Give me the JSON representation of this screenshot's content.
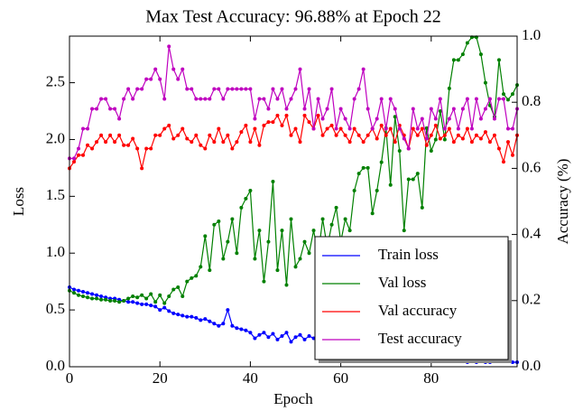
{
  "chart_data": {
    "type": "line",
    "title": "Max Test Accuracy: 96.88% at Epoch 22",
    "xlabel": "Epoch",
    "ylabel": "Loss",
    "y2label": "Accuracy (%)",
    "x": [
      0,
      1,
      2,
      3,
      4,
      5,
      6,
      7,
      8,
      9,
      10,
      11,
      12,
      13,
      14,
      15,
      16,
      17,
      18,
      19,
      20,
      21,
      22,
      23,
      24,
      25,
      26,
      27,
      28,
      29,
      30,
      31,
      32,
      33,
      34,
      35,
      36,
      37,
      38,
      39,
      40,
      41,
      42,
      43,
      44,
      45,
      46,
      47,
      48,
      49,
      50,
      51,
      52,
      53,
      54,
      55,
      56,
      57,
      58,
      59,
      60,
      61,
      62,
      63,
      64,
      65,
      66,
      67,
      68,
      69,
      70,
      71,
      72,
      73,
      74,
      75,
      76,
      77,
      78,
      79,
      80,
      81,
      82,
      83,
      84,
      85,
      86,
      87,
      88,
      89,
      90,
      91,
      92,
      93,
      94,
      95,
      96,
      97,
      98,
      99
    ],
    "xlim": [
      0,
      99
    ],
    "xticks": [
      0,
      20,
      40,
      60,
      80
    ],
    "ylim": [
      0,
      2.91
    ],
    "yticks": [
      {
        "value": 0,
        "label": "0.0"
      },
      0.5,
      {
        "value": 1,
        "label": "1.0"
      },
      1.5,
      {
        "value": 2,
        "label": "2.0"
      },
      2.5
    ],
    "y2lim": [
      0,
      1
    ],
    "y2ticks": [
      {
        "value": 0,
        "label": "0.0"
      },
      0.2,
      0.4,
      0.6,
      0.8,
      {
        "value": 1,
        "label": "1.0"
      }
    ],
    "legend": "lower right",
    "series": [
      {
        "name": "Train loss",
        "color": "#0000ff",
        "values": [
          0.7,
          0.68,
          0.67,
          0.66,
          0.65,
          0.64,
          0.63,
          0.62,
          0.61,
          0.6,
          0.6,
          0.59,
          0.58,
          0.57,
          0.57,
          0.56,
          0.55,
          0.55,
          0.54,
          0.53,
          0.5,
          0.52,
          0.49,
          0.47,
          0.46,
          0.45,
          0.44,
          0.44,
          0.43,
          0.41,
          0.42,
          0.4,
          0.38,
          0.36,
          0.38,
          0.5,
          0.36,
          0.34,
          0.33,
          0.32,
          0.3,
          0.25,
          0.28,
          0.3,
          0.26,
          0.29,
          0.24,
          0.27,
          0.3,
          0.22,
          0.26,
          0.28,
          0.24,
          0.27,
          0.25,
          0.22,
          0.24,
          0.21,
          0.2,
          0.22,
          0.19,
          0.2,
          0.18,
          0.17,
          0.18,
          0.16,
          0.15,
          0.17,
          0.14,
          0.13,
          0.14,
          0.12,
          0.13,
          0.11,
          0.12,
          0.1,
          0.11,
          0.09,
          0.1,
          0.09,
          0.08,
          0.09,
          0.07,
          0.08,
          0.06,
          0.05,
          0.05,
          0.05,
          0.04,
          0.05,
          0.04,
          0.05,
          0.04,
          0.04,
          0.05,
          0.06,
          0.05,
          0.05,
          0.04,
          0.04
        ]
      },
      {
        "name": "Val loss",
        "color": "#008000",
        "values": [
          0.67,
          0.65,
          0.63,
          0.62,
          0.61,
          0.6,
          0.6,
          0.59,
          0.59,
          0.58,
          0.58,
          0.57,
          0.58,
          0.6,
          0.62,
          0.61,
          0.63,
          0.6,
          0.64,
          0.57,
          0.63,
          0.56,
          0.62,
          0.68,
          0.7,
          0.62,
          0.75,
          0.78,
          0.8,
          0.88,
          1.15,
          0.85,
          1.25,
          1.28,
          0.95,
          1.1,
          1.3,
          1.0,
          1.4,
          1.48,
          1.55,
          0.95,
          1.2,
          0.75,
          1.1,
          1.63,
          0.85,
          1.2,
          0.72,
          1.3,
          0.88,
          0.95,
          1.1,
          1.0,
          1.2,
          0.98,
          1.3,
          1.05,
          1.25,
          1.4,
          1.1,
          1.3,
          1.2,
          1.55,
          1.7,
          1.75,
          1.75,
          1.35,
          1.55,
          1.8,
          2.1,
          1.6,
          2.2,
          1.9,
          1.2,
          1.65,
          1.65,
          1.7,
          1.4,
          2.1,
          1.9,
          2.0,
          2.25,
          2.0,
          2.45,
          2.7,
          2.7,
          2.75,
          2.85,
          2.9,
          2.9,
          2.75,
          2.5,
          2.3,
          2.2,
          2.7,
          2.4,
          2.35,
          2.4,
          2.48
        ]
      },
      {
        "name": "Val accuracy",
        "color": "#ff0000",
        "axis": "y2",
        "values": [
          0.6,
          0.62,
          0.64,
          0.64,
          0.67,
          0.66,
          0.68,
          0.7,
          0.68,
          0.7,
          0.68,
          0.7,
          0.67,
          0.67,
          0.69,
          0.66,
          0.6,
          0.66,
          0.66,
          0.7,
          0.7,
          0.72,
          0.73,
          0.69,
          0.7,
          0.72,
          0.69,
          0.68,
          0.7,
          0.67,
          0.66,
          0.7,
          0.68,
          0.72,
          0.68,
          0.7,
          0.66,
          0.68,
          0.71,
          0.73,
          0.68,
          0.72,
          0.67,
          0.73,
          0.74,
          0.74,
          0.76,
          0.73,
          0.76,
          0.7,
          0.72,
          0.68,
          0.76,
          0.74,
          0.72,
          0.76,
          0.7,
          0.72,
          0.73,
          0.7,
          0.72,
          0.7,
          0.68,
          0.72,
          0.7,
          0.68,
          0.7,
          0.72,
          0.69,
          0.73,
          0.7,
          0.72,
          0.68,
          0.73,
          0.7,
          0.66,
          0.72,
          0.7,
          0.72,
          0.67,
          0.7,
          0.73,
          0.69,
          0.7,
          0.72,
          0.68,
          0.7,
          0.69,
          0.72,
          0.68,
          0.7,
          0.69,
          0.71,
          0.68,
          0.7,
          0.66,
          0.62,
          0.68,
          0.64,
          0.7
        ]
      },
      {
        "name": "Test accuracy",
        "color": "#bf00bf",
        "axis": "y2",
        "values": [
          0.63,
          0.63,
          0.66,
          0.72,
          0.72,
          0.78,
          0.78,
          0.81,
          0.81,
          0.78,
          0.78,
          0.75,
          0.81,
          0.84,
          0.81,
          0.84,
          0.84,
          0.87,
          0.87,
          0.9,
          0.87,
          0.81,
          0.9688,
          0.9,
          0.87,
          0.9,
          0.84,
          0.84,
          0.81,
          0.81,
          0.81,
          0.81,
          0.84,
          0.84,
          0.81,
          0.84,
          0.84,
          0.84,
          0.84,
          0.84,
          0.84,
          0.75,
          0.81,
          0.81,
          0.78,
          0.84,
          0.81,
          0.84,
          0.78,
          0.81,
          0.84,
          0.9,
          0.78,
          0.84,
          0.72,
          0.81,
          0.75,
          0.78,
          0.84,
          0.72,
          0.78,
          0.75,
          0.72,
          0.81,
          0.84,
          0.9,
          0.78,
          0.72,
          0.75,
          0.81,
          0.72,
          0.81,
          0.78,
          0.72,
          0.69,
          0.66,
          0.78,
          0.72,
          0.75,
          0.69,
          0.78,
          0.75,
          0.81,
          0.72,
          0.75,
          0.78,
          0.72,
          0.78,
          0.81,
          0.72,
          0.81,
          0.75,
          0.78,
          0.81,
          0.75,
          0.81,
          0.81,
          0.72,
          0.72,
          0.78
        ]
      }
    ]
  }
}
